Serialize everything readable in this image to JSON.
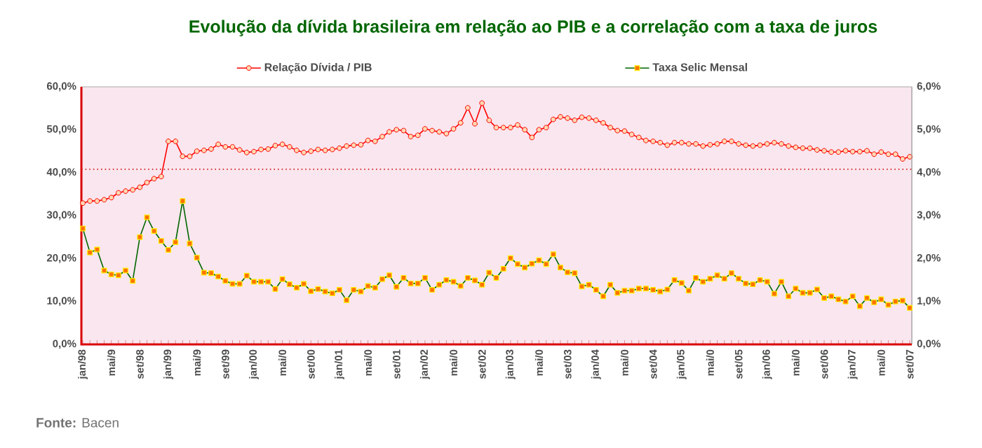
{
  "chart_data": {
    "type": "line",
    "title": "Evolução da dívida brasileira em relação ao PIB e a correlação com a taxa de juros",
    "categories": [
      "jan/98",
      null,
      null,
      null,
      "mai/9",
      null,
      null,
      null,
      "set/98",
      null,
      null,
      null,
      "jan/99",
      null,
      null,
      null,
      "mai/9",
      null,
      null,
      null,
      "set/99",
      null,
      null,
      null,
      "jan/00",
      null,
      null,
      null,
      "mai/0",
      null,
      null,
      null,
      "set/00",
      null,
      null,
      null,
      "jan/01",
      null,
      null,
      null,
      "mai/0",
      null,
      null,
      null,
      "set/01",
      null,
      null,
      null,
      "jan/02",
      null,
      null,
      null,
      "mai/0",
      null,
      null,
      null,
      "set/02",
      null,
      null,
      null,
      "jan/03",
      null,
      null,
      null,
      "mai/0",
      null,
      null,
      null,
      "set/03",
      null,
      null,
      null,
      "jan/04",
      null,
      null,
      null,
      "mai/0",
      null,
      null,
      null,
      "set/04",
      null,
      null,
      null,
      "jan/05",
      null,
      null,
      null,
      "mai/0",
      null,
      null,
      null,
      "set/05",
      null,
      null,
      null,
      "jan/06",
      null,
      null,
      null,
      "mai/0",
      null,
      null,
      null,
      "set/06",
      null,
      null,
      null,
      "jan/07",
      null,
      null,
      null,
      "mai/0",
      null,
      null,
      null,
      "set/07"
    ],
    "series": [
      {
        "name": "Relação Dívida / PIB",
        "color": "#ff0000",
        "marker": "circle",
        "values": [
          32.9,
          33.4,
          33.4,
          33.7,
          34.2,
          35.3,
          35.7,
          36.0,
          36.6,
          37.7,
          38.6,
          39.1,
          47.3,
          47.3,
          43.8,
          43.8,
          45.0,
          45.2,
          45.5,
          46.6,
          46.0,
          46.0,
          45.3,
          44.7,
          44.9,
          45.4,
          45.5,
          46.3,
          46.6,
          46.0,
          45.2,
          44.7,
          45.0,
          45.4,
          45.2,
          45.4,
          45.7,
          46.2,
          46.4,
          46.5,
          47.5,
          47.3,
          48.4,
          49.5,
          50.0,
          49.8,
          48.4,
          48.7,
          50.2,
          49.8,
          49.5,
          49.1,
          50.2,
          51.6,
          55.1,
          51.4,
          56.2,
          52.2,
          50.5,
          50.5,
          50.5,
          51.1,
          50.0,
          48.2,
          50.0,
          50.5,
          52.4,
          53.0,
          52.7,
          52.2,
          52.9,
          52.7,
          52.2,
          51.6,
          50.5,
          49.8,
          49.7,
          48.9,
          48.2,
          47.5,
          47.3,
          47.0,
          46.4,
          47.0,
          47.0,
          46.7,
          46.7,
          46.2,
          46.5,
          46.7,
          47.3,
          47.3,
          46.7,
          46.4,
          46.2,
          46.4,
          46.7,
          47.0,
          46.7,
          46.2,
          45.9,
          45.7,
          45.7,
          45.3,
          45.1,
          44.8,
          44.8,
          45.1,
          44.9,
          44.9,
          45.1,
          44.3,
          44.8,
          44.3,
          44.3,
          43.2,
          43.7
        ]
      },
      {
        "name": "Taxa Selic Mensal",
        "color": "#006600",
        "marker": "square",
        "axis": "y2",
        "values": [
          2.7,
          2.14,
          2.21,
          1.72,
          1.63,
          1.61,
          1.72,
          1.48,
          2.5,
          2.96,
          2.64,
          2.41,
          2.2,
          2.38,
          3.34,
          2.35,
          2.02,
          1.67,
          1.66,
          1.58,
          1.48,
          1.41,
          1.41,
          1.6,
          1.46,
          1.46,
          1.46,
          1.29,
          1.52,
          1.4,
          1.32,
          1.41,
          1.24,
          1.29,
          1.23,
          1.19,
          1.27,
          1.03,
          1.27,
          1.23,
          1.36,
          1.32,
          1.52,
          1.61,
          1.34,
          1.55,
          1.42,
          1.42,
          1.55,
          1.27,
          1.39,
          1.5,
          1.46,
          1.36,
          1.55,
          1.49,
          1.39,
          1.67,
          1.55,
          1.76,
          2.01,
          1.87,
          1.79,
          1.88,
          1.96,
          1.87,
          2.1,
          1.79,
          1.68,
          1.66,
          1.35,
          1.39,
          1.27,
          1.12,
          1.39,
          1.2,
          1.25,
          1.25,
          1.3,
          1.3,
          1.27,
          1.23,
          1.28,
          1.5,
          1.43,
          1.25,
          1.55,
          1.46,
          1.53,
          1.61,
          1.53,
          1.66,
          1.53,
          1.42,
          1.4,
          1.5,
          1.46,
          1.18,
          1.46,
          1.12,
          1.3,
          1.2,
          1.2,
          1.28,
          1.08,
          1.12,
          1.05,
          1.0,
          1.12,
          0.89,
          1.08,
          0.98,
          1.05,
          0.92,
          1.0,
          1.02,
          0.85
        ]
      }
    ],
    "ylim": [
      0,
      60
    ],
    "yticks": [
      {
        "value": 0,
        "label": "0,0%"
      },
      {
        "value": 10,
        "label": "10,0%"
      },
      {
        "value": 20,
        "label": "20,0%"
      },
      {
        "value": 30,
        "label": "30,0%"
      },
      {
        "value": 40,
        "label": "40,0%"
      },
      {
        "value": 50,
        "label": "50,0%"
      },
      {
        "value": 60,
        "label": "60,0%"
      }
    ],
    "y2lim": [
      0,
      6
    ],
    "y2ticks": [
      {
        "value": 0,
        "label": "0,0%"
      },
      {
        "value": 1,
        "label": "1,0%"
      },
      {
        "value": 2,
        "label": "2,0%"
      },
      {
        "value": 3,
        "label": "3,0%"
      },
      {
        "value": 4,
        "label": "4,0%"
      },
      {
        "value": 5,
        "label": "5,0%"
      },
      {
        "value": 6,
        "label": "6,0%"
      }
    ],
    "ref_lines": [
      {
        "axis": "y",
        "value": 40.8,
        "color": "#cc0000",
        "line_style": "dotted"
      }
    ],
    "legend": "top",
    "grid": false,
    "line_style": "solid",
    "annotations": [
      "**Fonte:** Bacen"
    ]
  }
}
